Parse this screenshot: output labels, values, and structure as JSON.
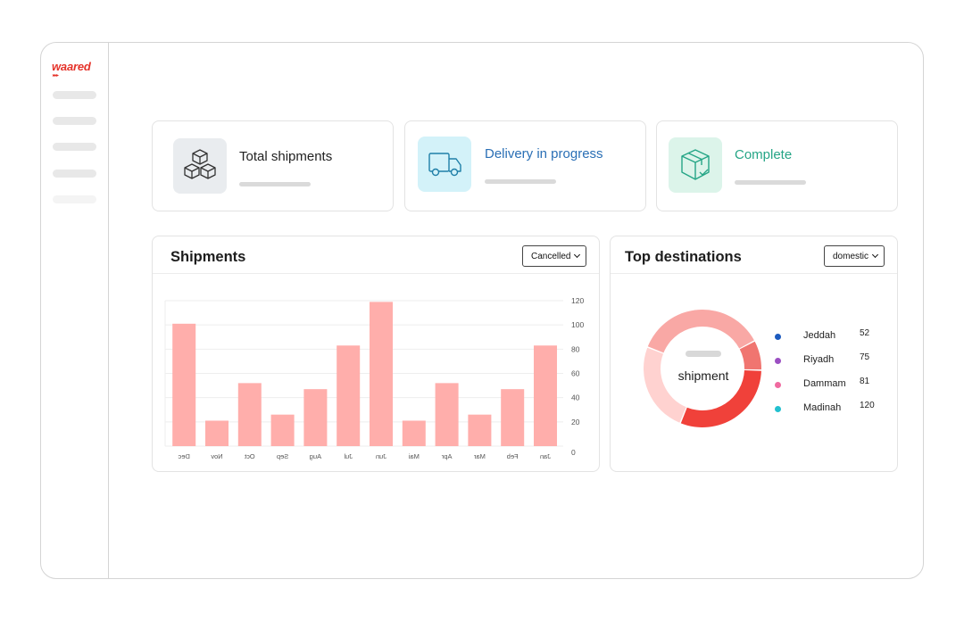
{
  "brand": {
    "logo": "waared",
    "logo_arrows": "▸▸▸"
  },
  "cards": [
    {
      "title": "Total shipments",
      "icon": "boxes-icon",
      "icon_bg": "#e9ecef",
      "title_color": "#222222"
    },
    {
      "title": "Delivery in progress",
      "icon": "truck-icon",
      "icon_bg": "#d3f2f9",
      "title_color": "#2a6fb5"
    },
    {
      "title": "Complete",
      "icon": "package-check-icon",
      "icon_bg": "#dcf4ea",
      "title_color": "#25a586"
    }
  ],
  "shipments_panel": {
    "title": "Shipments",
    "filter": "Cancelled"
  },
  "destinations_panel": {
    "title": "Top destinations",
    "filter": "domestic",
    "donut_label": "shipment"
  },
  "chart_data": {
    "type": "bar",
    "categories": [
      "Jan",
      "Feb",
      "Mar",
      "Apr",
      "Mai",
      "Jun",
      "Jul",
      "Aug",
      "Sep",
      "Oct",
      "Nov",
      "Dec"
    ],
    "values": [
      83,
      47,
      26,
      52,
      21,
      119,
      83,
      47,
      26,
      52,
      21,
      101
    ],
    "x_reversed": true,
    "yaxis_side": "right",
    "ylim": [
      0,
      120
    ],
    "yticks": [
      0,
      20,
      40,
      60,
      80,
      100,
      120
    ],
    "bar_color": "#ffaeab",
    "grid": true
  },
  "destinations": [
    {
      "name": "Jeddah",
      "value": "52",
      "color": "#1c5bbf"
    },
    {
      "name": "Riyadh",
      "value": "75",
      "color": "#9b4fc2"
    },
    {
      "name": "Dammam",
      "value": "81",
      "color": "#f06aa0"
    },
    {
      "name": "Madinah",
      "value": "120",
      "color": "#22c0cf"
    }
  ],
  "donut": {
    "segments": [
      {
        "value": 25,
        "color": "#f07570"
      },
      {
        "value": 93,
        "color": "#f0413a"
      },
      {
        "value": 75,
        "color": "#ffd2d0"
      },
      {
        "value": 110,
        "color": "#f9a8a5"
      }
    ]
  }
}
